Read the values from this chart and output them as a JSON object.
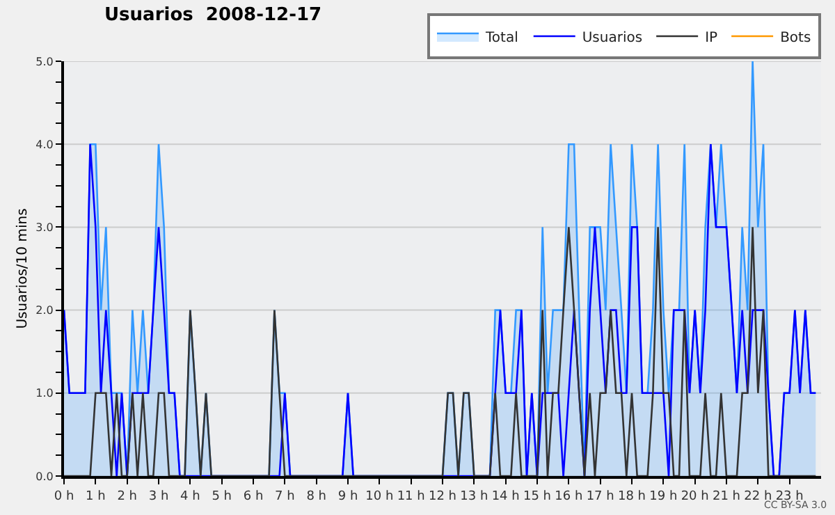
{
  "chart_data": {
    "type": "line",
    "title": "Usuarios  2008-12-17",
    "ylabel": "Usuarios/10 mins",
    "x": [
      0,
      0.17,
      0.33,
      0.5,
      0.67,
      0.83,
      1,
      1.17,
      1.33,
      1.5,
      1.67,
      1.83,
      2,
      2.17,
      2.33,
      2.5,
      2.67,
      2.83,
      3,
      3.17,
      3.33,
      3.5,
      3.67,
      3.83,
      4,
      4.17,
      4.33,
      4.5,
      4.67,
      4.83,
      5,
      5.17,
      5.33,
      5.5,
      5.67,
      5.83,
      6,
      6.17,
      6.33,
      6.5,
      6.67,
      6.83,
      7,
      7.17,
      7.33,
      7.5,
      7.67,
      7.83,
      8,
      8.17,
      8.33,
      8.5,
      8.67,
      8.83,
      9,
      9.17,
      9.33,
      9.5,
      9.67,
      9.83,
      10,
      10.17,
      10.33,
      10.5,
      10.67,
      10.83,
      11,
      11.17,
      11.33,
      11.5,
      11.67,
      11.83,
      12,
      12.17,
      12.33,
      12.5,
      12.67,
      12.83,
      13,
      13.17,
      13.33,
      13.5,
      13.67,
      13.83,
      14,
      14.17,
      14.33,
      14.5,
      14.67,
      14.83,
      15,
      15.17,
      15.33,
      15.5,
      15.67,
      15.83,
      16,
      16.17,
      16.33,
      16.5,
      16.67,
      16.83,
      17,
      17.17,
      17.33,
      17.5,
      17.67,
      17.83,
      18,
      18.17,
      18.33,
      18.5,
      18.67,
      18.83,
      19,
      19.17,
      19.33,
      19.5,
      19.67,
      19.83,
      20,
      20.17,
      20.33,
      20.5,
      20.67,
      20.83,
      21,
      21.17,
      21.33,
      21.5,
      21.67,
      21.83,
      22,
      22.17,
      22.33,
      22.5,
      22.67,
      22.83,
      23,
      23.17,
      23.33,
      23.5,
      23.67,
      23.83
    ],
    "series": [
      {
        "name": "Total",
        "type": "area",
        "color": "#3399ff",
        "values": [
          2,
          1,
          1,
          1,
          1,
          4,
          4,
          2,
          3,
          1,
          1,
          1,
          0,
          2,
          1,
          2,
          1,
          2,
          4,
          3,
          1,
          1,
          0,
          0,
          2,
          1,
          0,
          1,
          0,
          0,
          0,
          0,
          0,
          0,
          0,
          0,
          0,
          0,
          0,
          0,
          2,
          1,
          1,
          0,
          0,
          0,
          0,
          0,
          0,
          0,
          0,
          0,
          0,
          0,
          1,
          0,
          0,
          0,
          0,
          0,
          0,
          0,
          0,
          0,
          0,
          0,
          0,
          0,
          0,
          0,
          0,
          0,
          0,
          1,
          1,
          0,
          1,
          1,
          0,
          0,
          0,
          0,
          2,
          2,
          1,
          1,
          2,
          2,
          0,
          1,
          0,
          3,
          1,
          2,
          2,
          2,
          4,
          4,
          2,
          0,
          3,
          3,
          3,
          2,
          4,
          3,
          2,
          1,
          4,
          3,
          1,
          1,
          2,
          4,
          2,
          1,
          2,
          2,
          4,
          1,
          2,
          1,
          3,
          4,
          3,
          4,
          3,
          2,
          1,
          3,
          2,
          5,
          3,
          4,
          1,
          0,
          0,
          1,
          1,
          2,
          1,
          2,
          1,
          1
        ]
      },
      {
        "name": "Usuarios",
        "type": "line",
        "color": "#0000ff",
        "values": [
          2,
          1,
          1,
          1,
          1,
          4,
          3,
          1,
          2,
          1,
          0,
          1,
          0,
          1,
          1,
          1,
          1,
          2,
          3,
          2,
          1,
          1,
          0,
          0,
          0,
          0,
          0,
          0,
          0,
          0,
          0,
          0,
          0,
          0,
          0,
          0,
          0,
          0,
          0,
          0,
          0,
          0,
          1,
          0,
          0,
          0,
          0,
          0,
          0,
          0,
          0,
          0,
          0,
          0,
          1,
          0,
          0,
          0,
          0,
          0,
          0,
          0,
          0,
          0,
          0,
          0,
          0,
          0,
          0,
          0,
          0,
          0,
          0,
          0,
          0,
          0,
          0,
          0,
          0,
          0,
          0,
          0,
          1,
          2,
          1,
          1,
          1,
          2,
          0,
          1,
          0,
          1,
          1,
          1,
          1,
          0,
          1,
          2,
          1,
          0,
          2,
          3,
          2,
          1,
          2,
          2,
          1,
          1,
          3,
          3,
          1,
          1,
          1,
          1,
          1,
          0,
          2,
          2,
          2,
          1,
          2,
          1,
          2,
          4,
          3,
          3,
          3,
          2,
          1,
          2,
          1,
          2,
          2,
          2,
          1,
          0,
          0,
          1,
          1,
          2,
          1,
          2,
          1,
          1
        ]
      },
      {
        "name": "IP",
        "type": "line",
        "color": "#333333",
        "values": [
          0,
          0,
          0,
          0,
          0,
          0,
          1,
          1,
          1,
          0,
          1,
          0,
          0,
          1,
          0,
          1,
          0,
          0,
          1,
          1,
          0,
          0,
          0,
          0,
          2,
          1,
          0,
          1,
          0,
          0,
          0,
          0,
          0,
          0,
          0,
          0,
          0,
          0,
          0,
          0,
          2,
          1,
          0,
          0,
          0,
          0,
          0,
          0,
          0,
          0,
          0,
          0,
          0,
          0,
          0,
          0,
          0,
          0,
          0,
          0,
          0,
          0,
          0,
          0,
          0,
          0,
          0,
          0,
          0,
          0,
          0,
          0,
          0,
          1,
          1,
          0,
          1,
          1,
          0,
          0,
          0,
          0,
          1,
          0,
          0,
          0,
          1,
          0,
          0,
          0,
          0,
          2,
          0,
          1,
          1,
          2,
          3,
          2,
          1,
          0,
          1,
          0,
          1,
          1,
          2,
          1,
          1,
          0,
          1,
          0,
          0,
          0,
          1,
          3,
          1,
          1,
          0,
          0,
          2,
          0,
          0,
          0,
          1,
          0,
          0,
          1,
          0,
          0,
          0,
          1,
          1,
          3,
          1,
          2,
          0,
          0,
          0,
          0,
          0,
          0,
          0,
          0,
          0,
          0
        ]
      },
      {
        "name": "Bots",
        "type": "line",
        "color": "#ff9900",
        "values": [
          null,
          null,
          null,
          null,
          null,
          null,
          null,
          null,
          null,
          null,
          null,
          null,
          null,
          null,
          null,
          null,
          null,
          null,
          null,
          null,
          null,
          null,
          null,
          null,
          null,
          null,
          null,
          null,
          null,
          null,
          null,
          null,
          null,
          null,
          null,
          null,
          null,
          null,
          null,
          null,
          null,
          null,
          null,
          null,
          null,
          null,
          null,
          null,
          null,
          null,
          null,
          null,
          null,
          null,
          null,
          null,
          null,
          null,
          null,
          null,
          null,
          null,
          null,
          null,
          null,
          null,
          null,
          null,
          null,
          null,
          null,
          null,
          null,
          null,
          null,
          null,
          null,
          null,
          null,
          null,
          null,
          null,
          null,
          null,
          null,
          null,
          null,
          null,
          null,
          null,
          null,
          null,
          null,
          null,
          null,
          null,
          null,
          null,
          null,
          null,
          null,
          null,
          null,
          null,
          null,
          null,
          null,
          null,
          null,
          null,
          null,
          null,
          null,
          null,
          null,
          null,
          null,
          null,
          null,
          null,
          null,
          null,
          null,
          null,
          null,
          null,
          null,
          null,
          null,
          null,
          null,
          null,
          null,
          null,
          null,
          null,
          null,
          null,
          null,
          null,
          null,
          null,
          null,
          null
        ]
      }
    ],
    "xlim": [
      0,
      24
    ],
    "xticks": [
      {
        "value": 0,
        "label": "0 h"
      },
      {
        "value": 1,
        "label": "1 h"
      },
      {
        "value": 2,
        "label": "2 h"
      },
      {
        "value": 3,
        "label": "3 h"
      },
      {
        "value": 4,
        "label": "4 h"
      },
      {
        "value": 5,
        "label": "5 h"
      },
      {
        "value": 6,
        "label": "6 h"
      },
      {
        "value": 7,
        "label": "7 h"
      },
      {
        "value": 8,
        "label": "8 h"
      },
      {
        "value": 9,
        "label": "9 h"
      },
      {
        "value": 10,
        "label": "10 h"
      },
      {
        "value": 11,
        "label": "11 h"
      },
      {
        "value": 12,
        "label": "12 h"
      },
      {
        "value": 13,
        "label": "13 h"
      },
      {
        "value": 14,
        "label": "14 h"
      },
      {
        "value": 15,
        "label": "15 h"
      },
      {
        "value": 16,
        "label": "16 h"
      },
      {
        "value": 17,
        "label": "17 h"
      },
      {
        "value": 18,
        "label": "18 h"
      },
      {
        "value": 19,
        "label": "19 h"
      },
      {
        "value": 20,
        "label": "20 h"
      },
      {
        "value": 21,
        "label": "21 h"
      },
      {
        "value": 22,
        "label": "22 h"
      },
      {
        "value": 23,
        "label": "23 h"
      }
    ],
    "ylim": [
      0,
      5
    ],
    "yticks": [
      {
        "value": 0,
        "label": "0.0"
      },
      {
        "value": 0.25,
        "label": null
      },
      {
        "value": 0.5,
        "label": null
      },
      {
        "value": 0.75,
        "label": null
      },
      {
        "value": 1,
        "label": "1.0"
      },
      {
        "value": 1.25,
        "label": null
      },
      {
        "value": 1.5,
        "label": null
      },
      {
        "value": 1.75,
        "label": null
      },
      {
        "value": 2,
        "label": "2.0"
      },
      {
        "value": 2.25,
        "label": null
      },
      {
        "value": 2.5,
        "label": null
      },
      {
        "value": 2.75,
        "label": null
      },
      {
        "value": 3,
        "label": "3.0"
      },
      {
        "value": 3.25,
        "label": null
      },
      {
        "value": 3.5,
        "label": null
      },
      {
        "value": 3.75,
        "label": null
      },
      {
        "value": 4,
        "label": "4.0"
      },
      {
        "value": 4.25,
        "label": null
      },
      {
        "value": 4.5,
        "label": null
      },
      {
        "value": 4.75,
        "label": null
      },
      {
        "value": 5,
        "label": "5.0"
      }
    ],
    "grid": "y",
    "legend": "top right",
    "marker": "none",
    "line_style": "solid",
    "annotations": [
      "CC BY-SA 3.0"
    ]
  }
}
